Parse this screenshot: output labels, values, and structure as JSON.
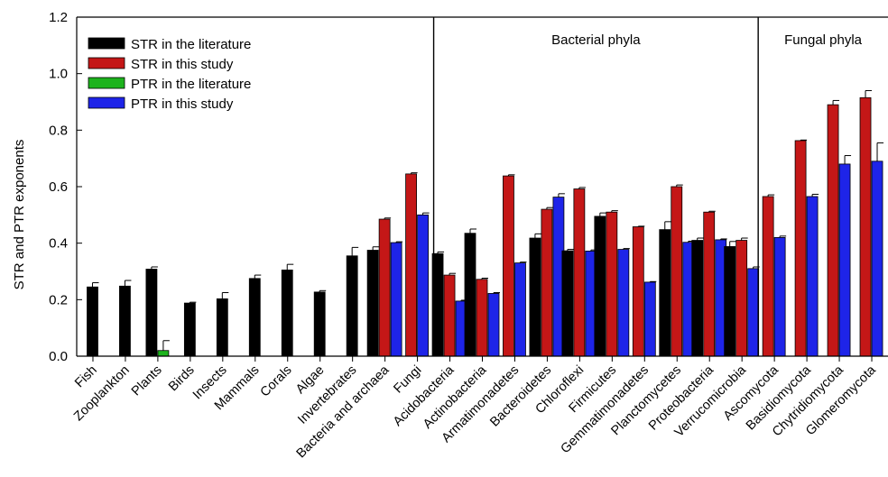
{
  "chart_data": {
    "type": "bar",
    "ylabel": "STR and PTR exponents",
    "xlabel": "",
    "ylim": [
      0,
      1.2
    ],
    "yticks": [
      "0.0",
      "0.2",
      "0.4",
      "0.6",
      "0.8",
      "1.0",
      "1.2"
    ],
    "categories": [
      "Fish",
      "Zooplankton",
      "Plants",
      "Birds",
      "Insects",
      "Mammals",
      "Corals",
      "Algae",
      "Invertebrates",
      "Bacteria and archaea",
      "Fungi",
      "Acidobacteria",
      "Actinobacteria",
      "Armatimonadetes",
      "Bacteroidetes",
      "Chloroflexi",
      "Firmicutes",
      "Gemmatimonadetes",
      "Planctomycetes",
      "Proteobacteria",
      "Verrucomicrobia",
      "Ascomycota",
      "Basidiomycota",
      "Chytridiomycota",
      "Glomeromycota"
    ],
    "region_labels": [
      {
        "text": "Bacterial phyla",
        "after_category": 10
      },
      {
        "text": "Fungal phyla",
        "after_category": 20
      }
    ],
    "legend_position": "top-left",
    "series": [
      {
        "name": "STR in the literature",
        "color": "#000000",
        "values": [
          0.245,
          0.248,
          0.308,
          0.188,
          0.203,
          0.275,
          0.305,
          0.227,
          0.355,
          0.375,
          null,
          0.363,
          0.435,
          null,
          0.418,
          0.373,
          0.495,
          null,
          0.448,
          0.41,
          0.388,
          null,
          null,
          null,
          null
        ],
        "errors": [
          0.015,
          0.02,
          0.008,
          0.003,
          0.022,
          0.012,
          0.02,
          0.005,
          0.03,
          0.012,
          null,
          0.006,
          0.015,
          null,
          0.015,
          0.005,
          0.012,
          null,
          0.028,
          0.008,
          0.018,
          null,
          null,
          null,
          null
        ]
      },
      {
        "name": "STR in this study",
        "color": "#c41717",
        "values": [
          null,
          null,
          null,
          null,
          null,
          null,
          null,
          null,
          null,
          0.485,
          0.645,
          0.287,
          0.272,
          0.638,
          0.52,
          0.592,
          0.51,
          0.458,
          0.6,
          0.51,
          0.41,
          0.565,
          0.763,
          0.89,
          0.915
        ],
        "errors": [
          null,
          null,
          null,
          null,
          null,
          null,
          null,
          null,
          null,
          0.004,
          0.004,
          0.006,
          0.004,
          0.004,
          0.006,
          0.005,
          0.005,
          0.002,
          0.006,
          0.003,
          0.008,
          0.006,
          0.002,
          0.015,
          0.025
        ]
      },
      {
        "name": "PTR in the literature",
        "color": "#1db31d",
        "values": [
          null,
          null,
          0.02,
          null,
          null,
          null,
          null,
          null,
          null,
          null,
          null,
          null,
          null,
          null,
          null,
          null,
          null,
          null,
          null,
          null,
          null,
          null,
          null,
          null,
          null
        ],
        "errors": [
          null,
          null,
          0.035,
          null,
          null,
          null,
          null,
          null,
          null,
          null,
          null,
          null,
          null,
          null,
          null,
          null,
          null,
          null,
          null,
          null,
          null,
          null,
          null,
          null,
          null
        ]
      },
      {
        "name": "PTR in this study",
        "color": "#1e24e8",
        "values": [
          null,
          null,
          null,
          null,
          null,
          null,
          null,
          null,
          null,
          0.402,
          0.5,
          0.195,
          0.222,
          0.33,
          0.563,
          0.372,
          0.378,
          0.262,
          0.403,
          0.412,
          0.31,
          0.42,
          0.565,
          0.68,
          0.69
        ],
        "errors": [
          null,
          null,
          null,
          null,
          null,
          null,
          null,
          null,
          null,
          0.003,
          0.007,
          0.003,
          0.003,
          0.003,
          0.012,
          0.004,
          0.003,
          0.002,
          0.004,
          0.003,
          0.006,
          0.005,
          0.008,
          0.03,
          0.065
        ]
      }
    ]
  }
}
